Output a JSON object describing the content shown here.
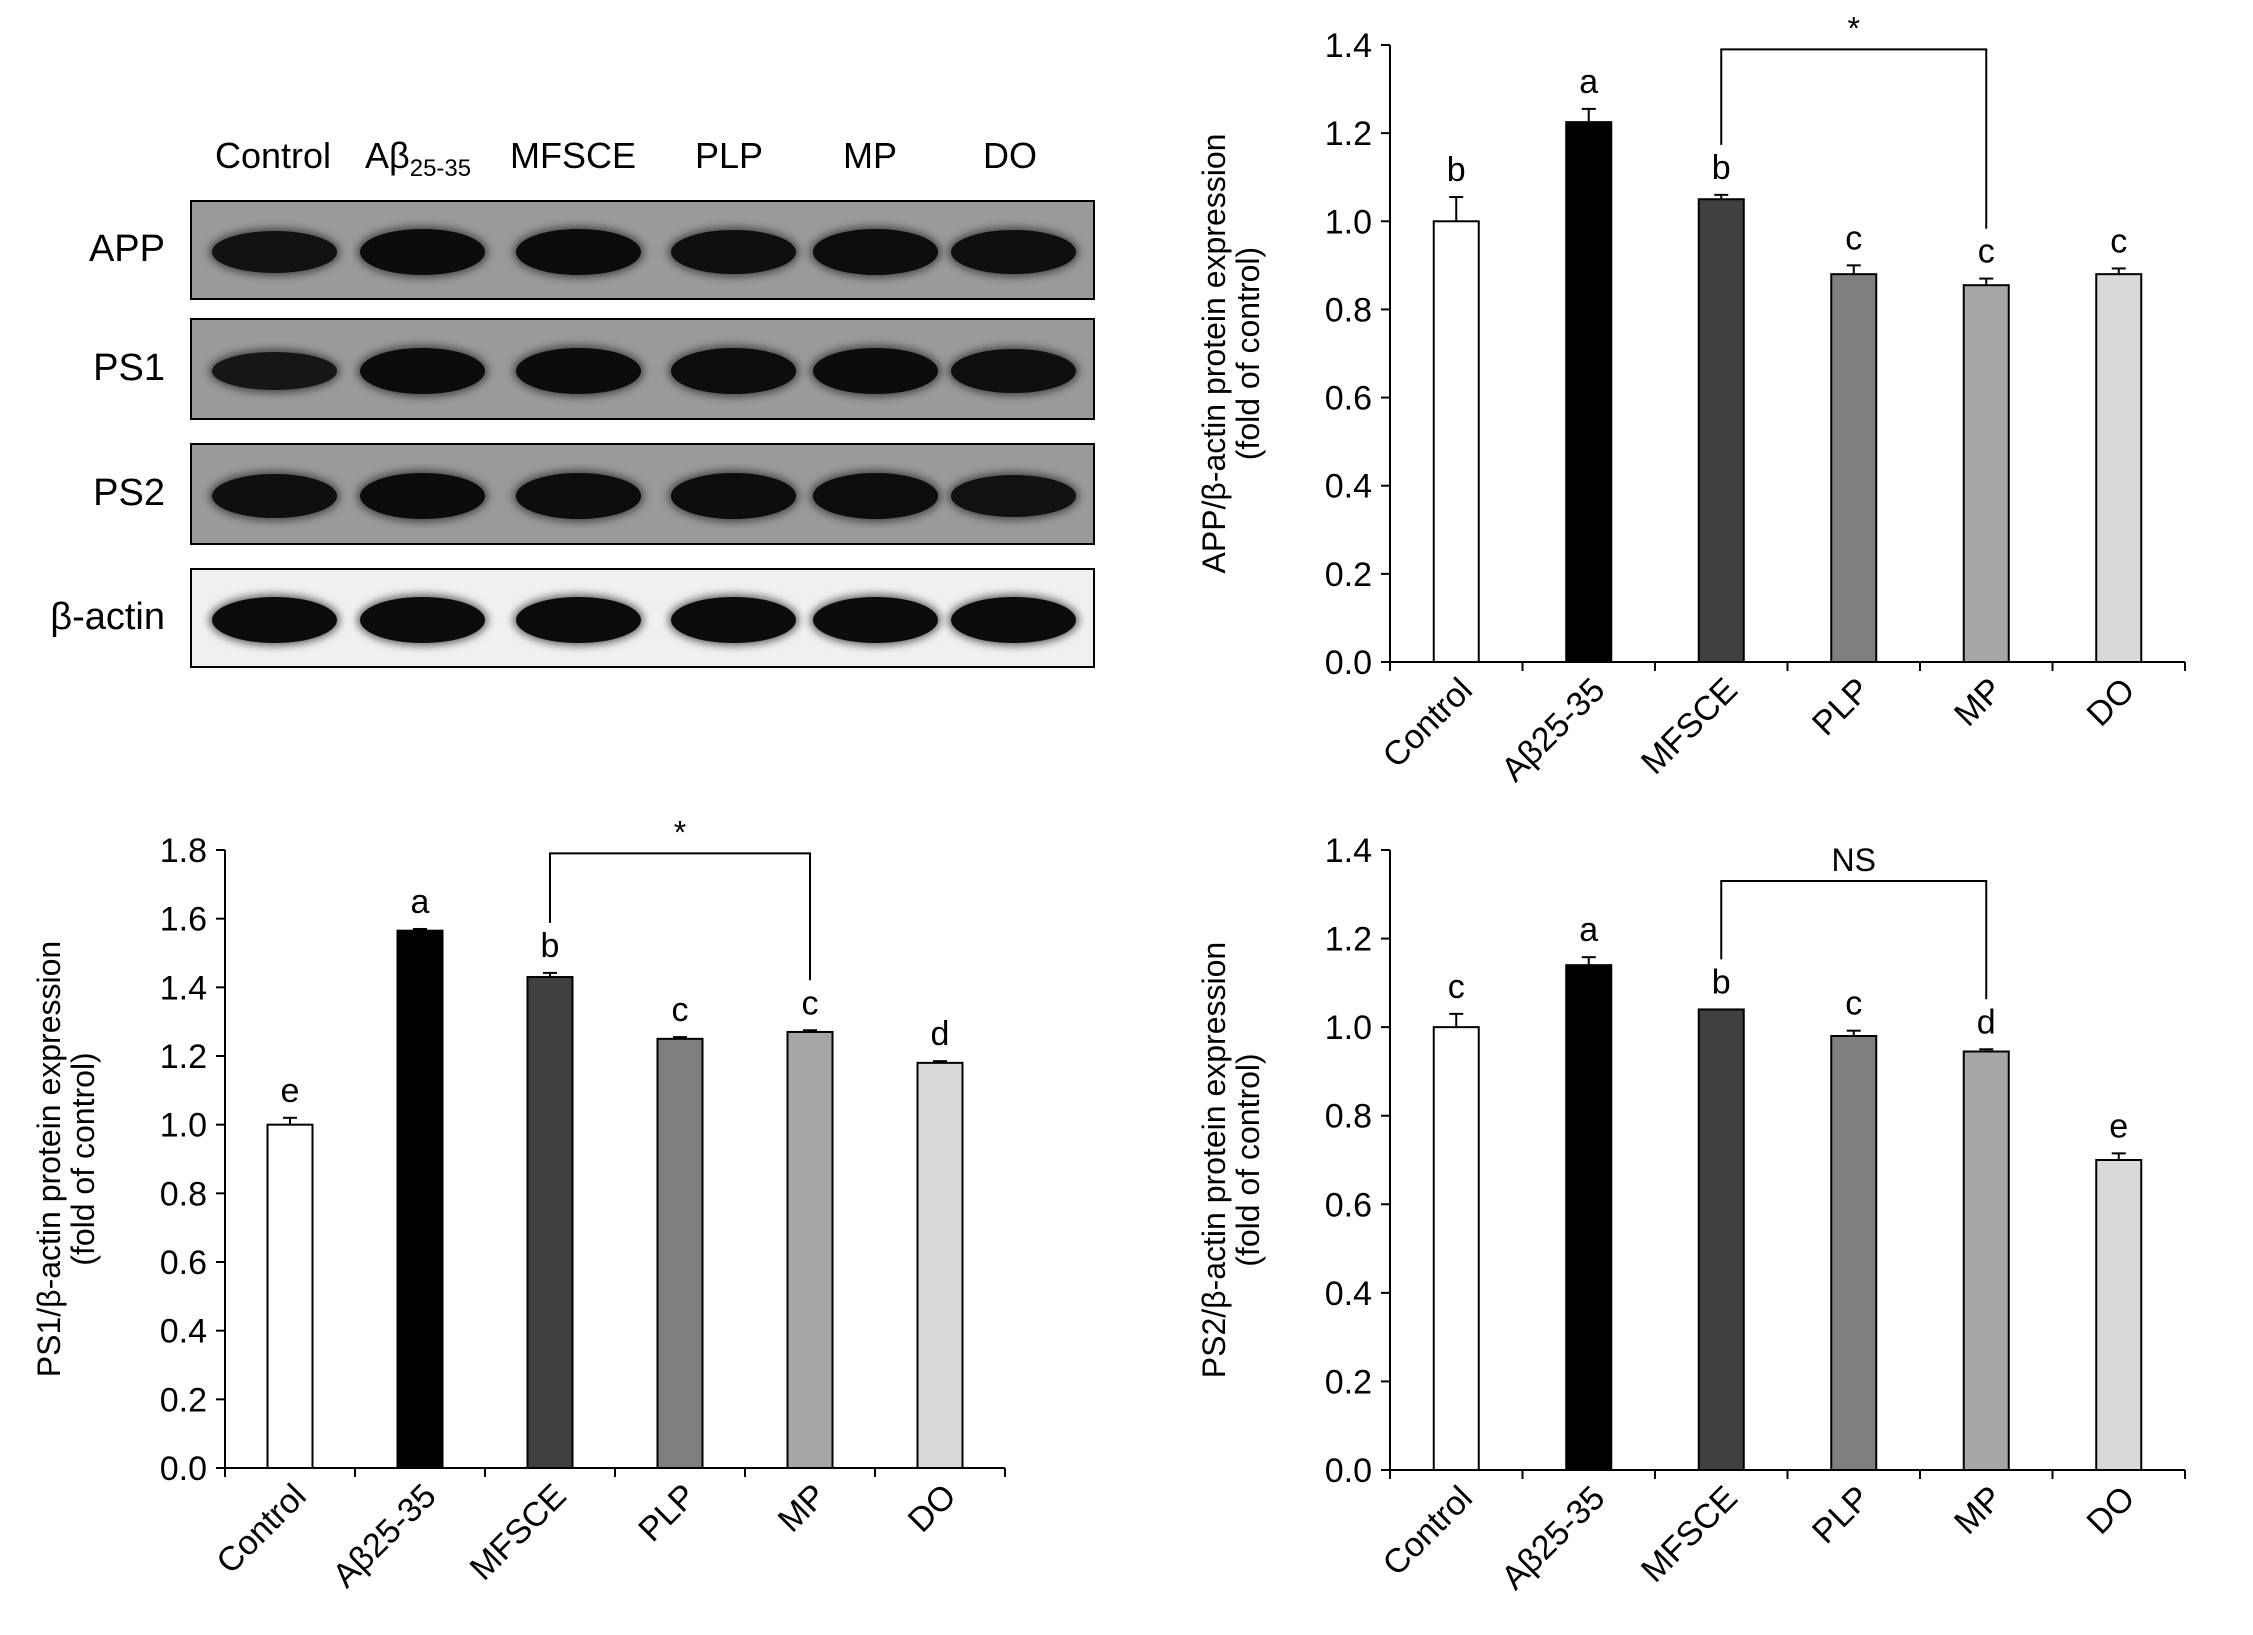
{
  "blot": {
    "lanes": [
      {
        "name": "Control",
        "sub": ""
      },
      {
        "name": "Aβ",
        "sub": "25-35"
      },
      {
        "name": "MFSCE",
        "sub": ""
      },
      {
        "name": "PLP",
        "sub": ""
      },
      {
        "name": "MP",
        "sub": ""
      },
      {
        "name": "DO",
        "sub": ""
      }
    ],
    "rows": [
      {
        "label": "APP",
        "intensities": [
          0.75,
          0.95,
          0.95,
          0.85,
          0.9,
          0.85
        ]
      },
      {
        "label": "PS1",
        "intensities": [
          0.6,
          0.95,
          0.95,
          0.9,
          0.95,
          0.85
        ]
      },
      {
        "label": "PS2",
        "intensities": [
          0.85,
          0.95,
          0.9,
          0.9,
          0.9,
          0.75
        ]
      },
      {
        "label": "β-actin",
        "intensities": [
          0.95,
          0.95,
          0.95,
          0.95,
          0.95,
          0.95
        ]
      }
    ]
  },
  "colors": {
    "Control": "#ffffff",
    "Aβ25-35": "#000000",
    "MFSCE": "#404040",
    "PLP": "#7f7f7f",
    "MP": "#a6a6a6",
    "DO": "#d9d9d9"
  },
  "chart_data": [
    {
      "type": "bar",
      "id": "app",
      "ylabel": [
        "APP/β-actin protein expression",
        "(fold of control)"
      ],
      "categories": [
        "Control",
        "Aβ25-35",
        "MFSCE",
        "PLP",
        "MP",
        "DO"
      ],
      "values": [
        1.0,
        1.225,
        1.05,
        0.88,
        0.855,
        0.88
      ],
      "errors": [
        0.055,
        0.03,
        0.01,
        0.02,
        0.015,
        0.013
      ],
      "letters": [
        "b",
        "a",
        "b",
        "c",
        "c",
        "c"
      ],
      "ylim": [
        0,
        1.4
      ],
      "yticks": [
        "0.0",
        "0.2",
        "0.4",
        "0.6",
        "0.8",
        "1.0",
        "1.2",
        "1.4"
      ],
      "comparison": {
        "from": "MFSCE",
        "to": "MP",
        "label": "*",
        "level": 1.39
      }
    },
    {
      "type": "bar",
      "id": "ps1",
      "ylabel": [
        "PS1/β-actin protein expression",
        "(fold of control)"
      ],
      "categories": [
        "Control",
        "Aβ25-35",
        "MFSCE",
        "PLP",
        "MP",
        "DO"
      ],
      "values": [
        1.0,
        1.565,
        1.43,
        1.25,
        1.27,
        1.18
      ],
      "errors": [
        0.02,
        0.005,
        0.012,
        0.005,
        0.005,
        0.005
      ],
      "letters": [
        "e",
        "a",
        "b",
        "c",
        "c",
        "d"
      ],
      "ylim": [
        0,
        1.8
      ],
      "yticks": [
        "0.0",
        "0.2",
        "0.4",
        "0.6",
        "0.8",
        "1.0",
        "1.2",
        "1.4",
        "1.6",
        "1.8"
      ],
      "comparison": {
        "from": "MFSCE",
        "to": "MP",
        "label": "*",
        "level": 1.79
      }
    },
    {
      "type": "bar",
      "id": "ps2",
      "ylabel": [
        "PS2/β-actin protein expression",
        "(fold of control)"
      ],
      "categories": [
        "Control",
        "Aβ25-35",
        "MFSCE",
        "PLP",
        "MP",
        "DO"
      ],
      "values": [
        1.0,
        1.14,
        1.04,
        0.98,
        0.945,
        0.7
      ],
      "errors": [
        0.03,
        0.018,
        0.0,
        0.012,
        0.005,
        0.015
      ],
      "letters": [
        "c",
        "a",
        "b",
        "c",
        "d",
        "e"
      ],
      "ylim": [
        0,
        1.4
      ],
      "yticks": [
        "0.0",
        "0.2",
        "0.4",
        "0.6",
        "0.8",
        "1.0",
        "1.2",
        "1.4"
      ],
      "comparison": {
        "from": "MFSCE",
        "to": "MP",
        "label": "NS",
        "level": 1.33
      }
    }
  ]
}
